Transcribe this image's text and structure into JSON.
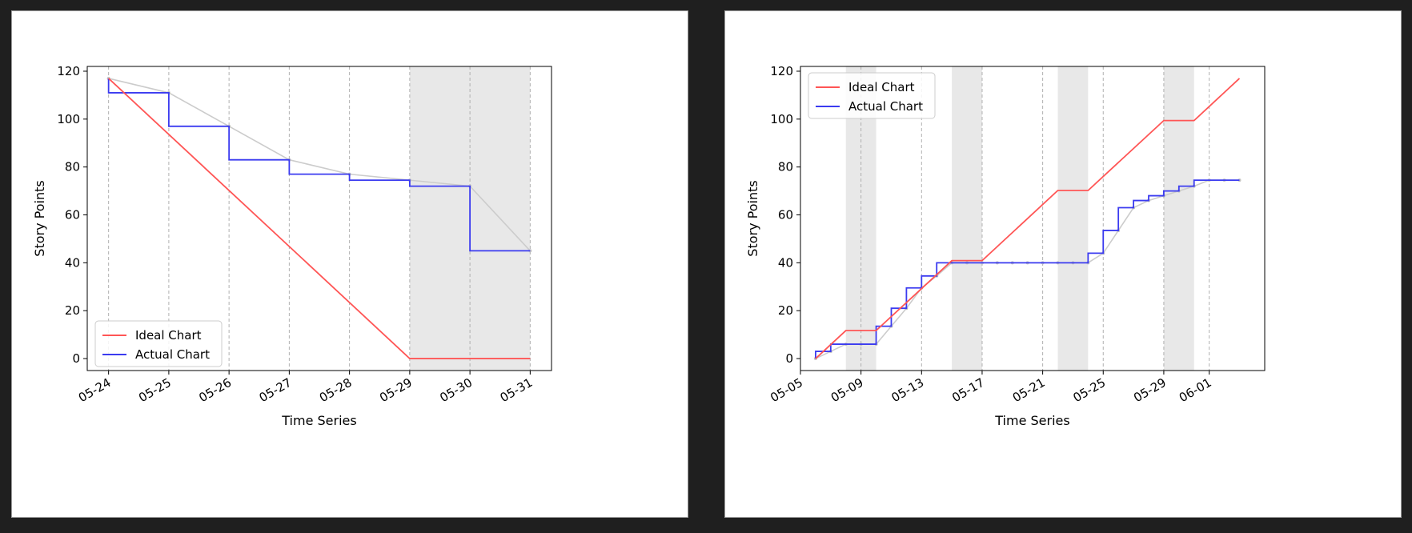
{
  "chart_data": [
    {
      "type": "line",
      "title": "",
      "xlabel": "Time Series",
      "ylabel": "Story Points",
      "ylim": [
        -5,
        122
      ],
      "xlim": [
        "2023-05-23T15:30",
        "2023-05-31T08:30"
      ],
      "yticks": [
        0,
        20,
        40,
        60,
        80,
        100,
        120
      ],
      "xticks": [
        {
          "date": "2023-05-24",
          "label": "05-24"
        },
        {
          "date": "2023-05-25",
          "label": "05-25"
        },
        {
          "date": "2023-05-26",
          "label": "05-26"
        },
        {
          "date": "2023-05-27",
          "label": "05-27"
        },
        {
          "date": "2023-05-28",
          "label": "05-28"
        },
        {
          "date": "2023-05-29",
          "label": "05-29"
        },
        {
          "date": "2023-05-30",
          "label": "05-30"
        },
        {
          "date": "2023-05-31",
          "label": "05-31"
        }
      ],
      "grid": "x-dashed",
      "legend": "lower-left",
      "shaded_ranges": [
        [
          "2023-05-29",
          "2023-05-31"
        ]
      ],
      "series": [
        {
          "name": "Ideal Chart",
          "color": "#ff5555",
          "style": "line",
          "x": [
            "2023-05-24",
            "2023-05-29",
            "2023-05-31"
          ],
          "y": [
            117,
            0,
            0
          ]
        },
        {
          "name": "Actual Chart",
          "color": "#3b3bf0",
          "style": "step",
          "x": [
            "2023-05-24",
            "2023-05-25",
            "2023-05-26",
            "2023-05-27",
            "2023-05-28",
            "2023-05-29",
            "2023-05-30",
            "2023-05-31"
          ],
          "y": [
            111,
            97,
            83,
            77,
            74.5,
            72,
            45,
            45
          ]
        },
        {
          "name": "",
          "color": "#cccccc",
          "style": "line-markers",
          "x": [
            "2023-05-24",
            "2023-05-25",
            "2023-05-26",
            "2023-05-27",
            "2023-05-28",
            "2023-05-29",
            "2023-05-30",
            "2023-05-31"
          ],
          "y": [
            117,
            111,
            97,
            83,
            77,
            74.5,
            72,
            45
          ]
        }
      ]
    },
    {
      "type": "line",
      "title": "",
      "xlabel": "Time Series",
      "ylabel": "Story Points",
      "ylim": [
        -5,
        122
      ],
      "xlim": [
        "2023-05-05T00:00",
        "2023-06-04T16:00"
      ],
      "yticks": [
        0,
        20,
        40,
        60,
        80,
        100,
        120
      ],
      "xticks": [
        {
          "date": "2023-05-05",
          "label": "05-05"
        },
        {
          "date": "2023-05-09",
          "label": "05-09"
        },
        {
          "date": "2023-05-13",
          "label": "05-13"
        },
        {
          "date": "2023-05-17",
          "label": "05-17"
        },
        {
          "date": "2023-05-21",
          "label": "05-21"
        },
        {
          "date": "2023-05-25",
          "label": "05-25"
        },
        {
          "date": "2023-05-29",
          "label": "05-29"
        },
        {
          "date": "2023-06-01",
          "label": "06-01"
        }
      ],
      "grid": "x-dashed",
      "legend": "upper-left",
      "shaded_ranges": [
        [
          "2023-05-08",
          "2023-05-10"
        ],
        [
          "2023-05-15",
          "2023-05-17"
        ],
        [
          "2023-05-22",
          "2023-05-24"
        ],
        [
          "2023-05-29",
          "2023-05-31"
        ]
      ],
      "series": [
        {
          "name": "Ideal Chart",
          "color": "#ff5555",
          "style": "line",
          "x": [
            "2023-05-06",
            "2023-05-08",
            "2023-05-10",
            "2023-05-15",
            "2023-05-17",
            "2023-05-22",
            "2023-05-24",
            "2023-05-29",
            "2023-05-31",
            "2023-06-03"
          ],
          "y": [
            0,
            11.7,
            11.7,
            40.9,
            40.9,
            70.2,
            70.2,
            99.4,
            99.4,
            117
          ]
        },
        {
          "name": "Actual Chart",
          "color": "#3b3bf0",
          "style": "step",
          "x": [
            "2023-05-06",
            "2023-05-07",
            "2023-05-08",
            "2023-05-09",
            "2023-05-10",
            "2023-05-11",
            "2023-05-12",
            "2023-05-13",
            "2023-05-14",
            "2023-05-15",
            "2023-05-16",
            "2023-05-17",
            "2023-05-18",
            "2023-05-19",
            "2023-05-20",
            "2023-05-21",
            "2023-05-22",
            "2023-05-23",
            "2023-05-24",
            "2023-05-25",
            "2023-05-26",
            "2023-05-27",
            "2023-05-28",
            "2023-05-29",
            "2023-05-30",
            "2023-05-31",
            "2023-06-01",
            "2023-06-02",
            "2023-06-03"
          ],
          "y": [
            3,
            6,
            6,
            6,
            13.5,
            21,
            29.5,
            34.5,
            40,
            40,
            40,
            40,
            40,
            40,
            40,
            40,
            40,
            40,
            44,
            53.5,
            63,
            66,
            68,
            70,
            72,
            74.5,
            74.5,
            74.5,
            74.5
          ]
        },
        {
          "name": "",
          "color": "#cccccc",
          "style": "line-markers",
          "x": [
            "2023-05-06",
            "2023-05-07",
            "2023-05-08",
            "2023-05-09",
            "2023-05-10",
            "2023-05-11",
            "2023-05-12",
            "2023-05-13",
            "2023-05-14",
            "2023-05-15",
            "2023-05-16",
            "2023-05-17",
            "2023-05-18",
            "2023-05-19",
            "2023-05-20",
            "2023-05-21",
            "2023-05-22",
            "2023-05-23",
            "2023-05-24",
            "2023-05-25",
            "2023-05-26",
            "2023-05-27",
            "2023-05-28",
            "2023-05-29",
            "2023-05-30",
            "2023-05-31",
            "2023-06-01",
            "2023-06-02",
            "2023-06-03"
          ],
          "y": [
            0,
            3,
            6,
            6,
            6,
            13.5,
            21,
            29.5,
            34.5,
            40,
            40,
            40,
            40,
            40,
            40,
            40,
            40,
            40,
            40,
            44,
            53.5,
            63,
            66,
            68,
            70,
            72,
            74.5,
            74.5,
            74.5
          ]
        }
      ]
    }
  ]
}
